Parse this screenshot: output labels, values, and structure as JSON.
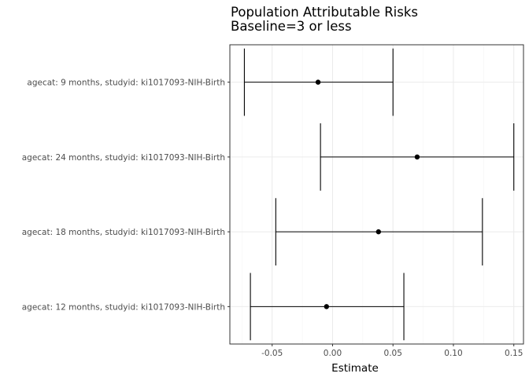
{
  "chart_data": {
    "type": "errorbar",
    "title": "Population Attributable Risks",
    "subtitle": "Baseline=3 or less",
    "xlabel": "Estimate",
    "ylabel": "",
    "xlim": [
      -0.085,
      0.158
    ],
    "xticks": [
      -0.05,
      0.0,
      0.05,
      0.1,
      0.15
    ],
    "xtick_labels": [
      "-0.05",
      "0.00",
      "0.05",
      "0.10",
      "0.15"
    ],
    "grid": true,
    "categories": [
      "agecat: 9 months, studyid: ki1017093-NIH-Birth",
      "agecat: 24 months, studyid: ki1017093-NIH-Birth",
      "agecat: 18 months, studyid: ki1017093-NIH-Birth",
      "agecat: 12 months, studyid: ki1017093-NIH-Birth"
    ],
    "estimates": [
      -0.012,
      0.07,
      0.038,
      -0.005
    ],
    "lower": [
      -0.073,
      -0.01,
      -0.047,
      -0.068
    ],
    "upper": [
      0.05,
      0.15,
      0.124,
      0.059
    ],
    "colors": {
      "panel_border": "#333333",
      "grid_major": "#ebebeb",
      "grid_minor": "#f5f5f5",
      "marks": "#000000"
    }
  }
}
